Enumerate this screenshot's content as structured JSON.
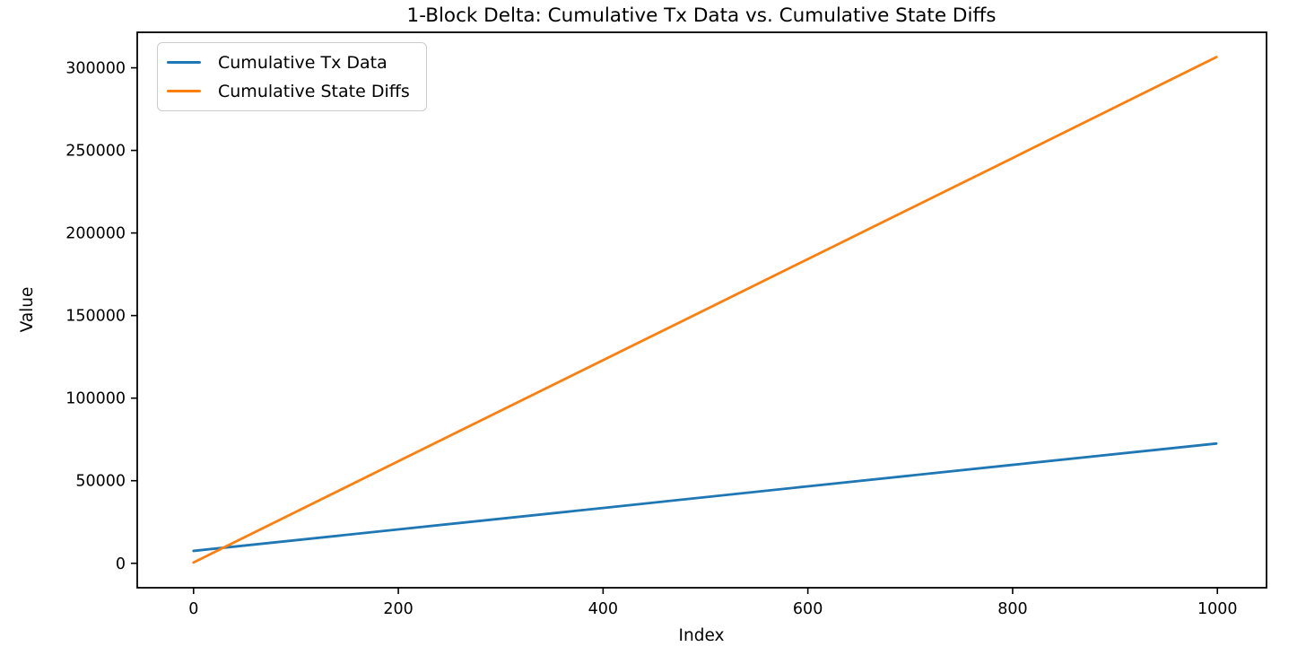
{
  "chart_data": {
    "type": "line",
    "title": "1-Block Delta: Cumulative Tx Data vs. Cumulative State Diffs",
    "xlabel": "Index",
    "ylabel": "Value",
    "x_ticks": [
      0,
      200,
      400,
      600,
      800,
      1000
    ],
    "y_ticks": [
      0,
      50000,
      100000,
      150000,
      200000,
      250000,
      300000
    ],
    "xlim": [
      -55,
      1048
    ],
    "ylim": [
      -14800,
      321500
    ],
    "grid": false,
    "legend_position": "upper-left",
    "x": [
      0,
      200,
      400,
      600,
      800,
      999
    ],
    "series": [
      {
        "name": "Cumulative Tx Data",
        "color": "#1f77b4",
        "values": [
          7500,
          20500,
          33500,
          46600,
          59600,
          72500
        ]
      },
      {
        "name": "Cumulative State Diffs",
        "color": "#ff7f0e",
        "values": [
          500,
          61800,
          123000,
          184200,
          245400,
          306500
        ]
      }
    ]
  }
}
